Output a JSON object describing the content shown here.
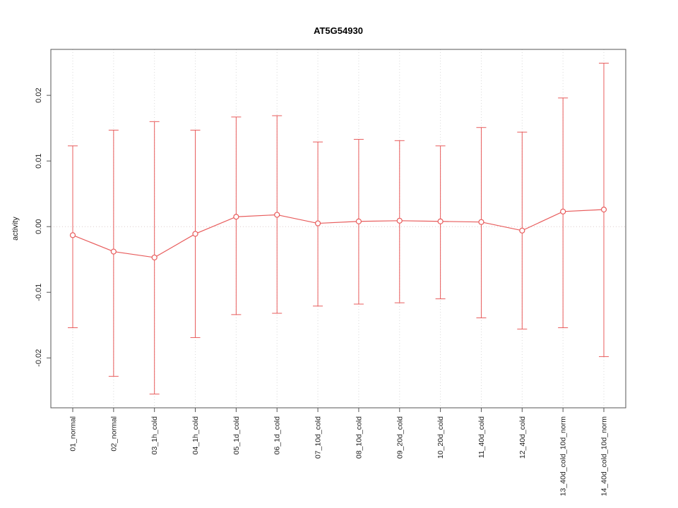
{
  "title": "AT5G54930",
  "chart_data": {
    "type": "line",
    "title": "AT5G54930",
    "xlabel": "",
    "ylabel": "activity",
    "ylim": [
      -0.0276,
      0.027
    ],
    "yticks": [
      -0.02,
      -0.01,
      0.0,
      0.01,
      0.02
    ],
    "grid": "vertical-dotted-plus-zero-line",
    "legend": "none",
    "categories": [
      "01_normal",
      "02_normal",
      "03_1h_cold",
      "04_1h_cold",
      "05_1d_cold",
      "06_1d_cold",
      "07_10d_cold",
      "08_10d_cold",
      "09_20d_cold",
      "10_20d_cold",
      "11_40d_cold",
      "12_40d_cold",
      "13_40d_cold_10d_norm",
      "14_40d_cold_10d_norm"
    ],
    "series": [
      {
        "name": "activity",
        "marker": "open-circle",
        "values": [
          -0.0013,
          -0.0038,
          -0.0047,
          -0.0011,
          0.0015,
          0.0018,
          0.0005,
          0.0008,
          0.0009,
          0.0008,
          0.0007,
          -0.0006,
          0.0023,
          0.0026
        ],
        "error_low": [
          -0.0154,
          -0.0228,
          -0.0255,
          -0.0169,
          -0.0134,
          -0.0132,
          -0.0121,
          -0.0118,
          -0.0116,
          -0.011,
          -0.0139,
          -0.0156,
          -0.0154,
          -0.0198
        ],
        "error_high": [
          0.0123,
          0.0147,
          0.016,
          0.0147,
          0.0167,
          0.0169,
          0.0129,
          0.0133,
          0.0131,
          0.0123,
          0.0151,
          0.0144,
          0.0196,
          0.0249
        ]
      }
    ],
    "colors": {
      "series": "#e85c5c",
      "grid": "#d9d9d9",
      "zero_line": "#dccccc",
      "box": "#555555",
      "tick_text": "#222222",
      "title_text": "#000000"
    }
  }
}
